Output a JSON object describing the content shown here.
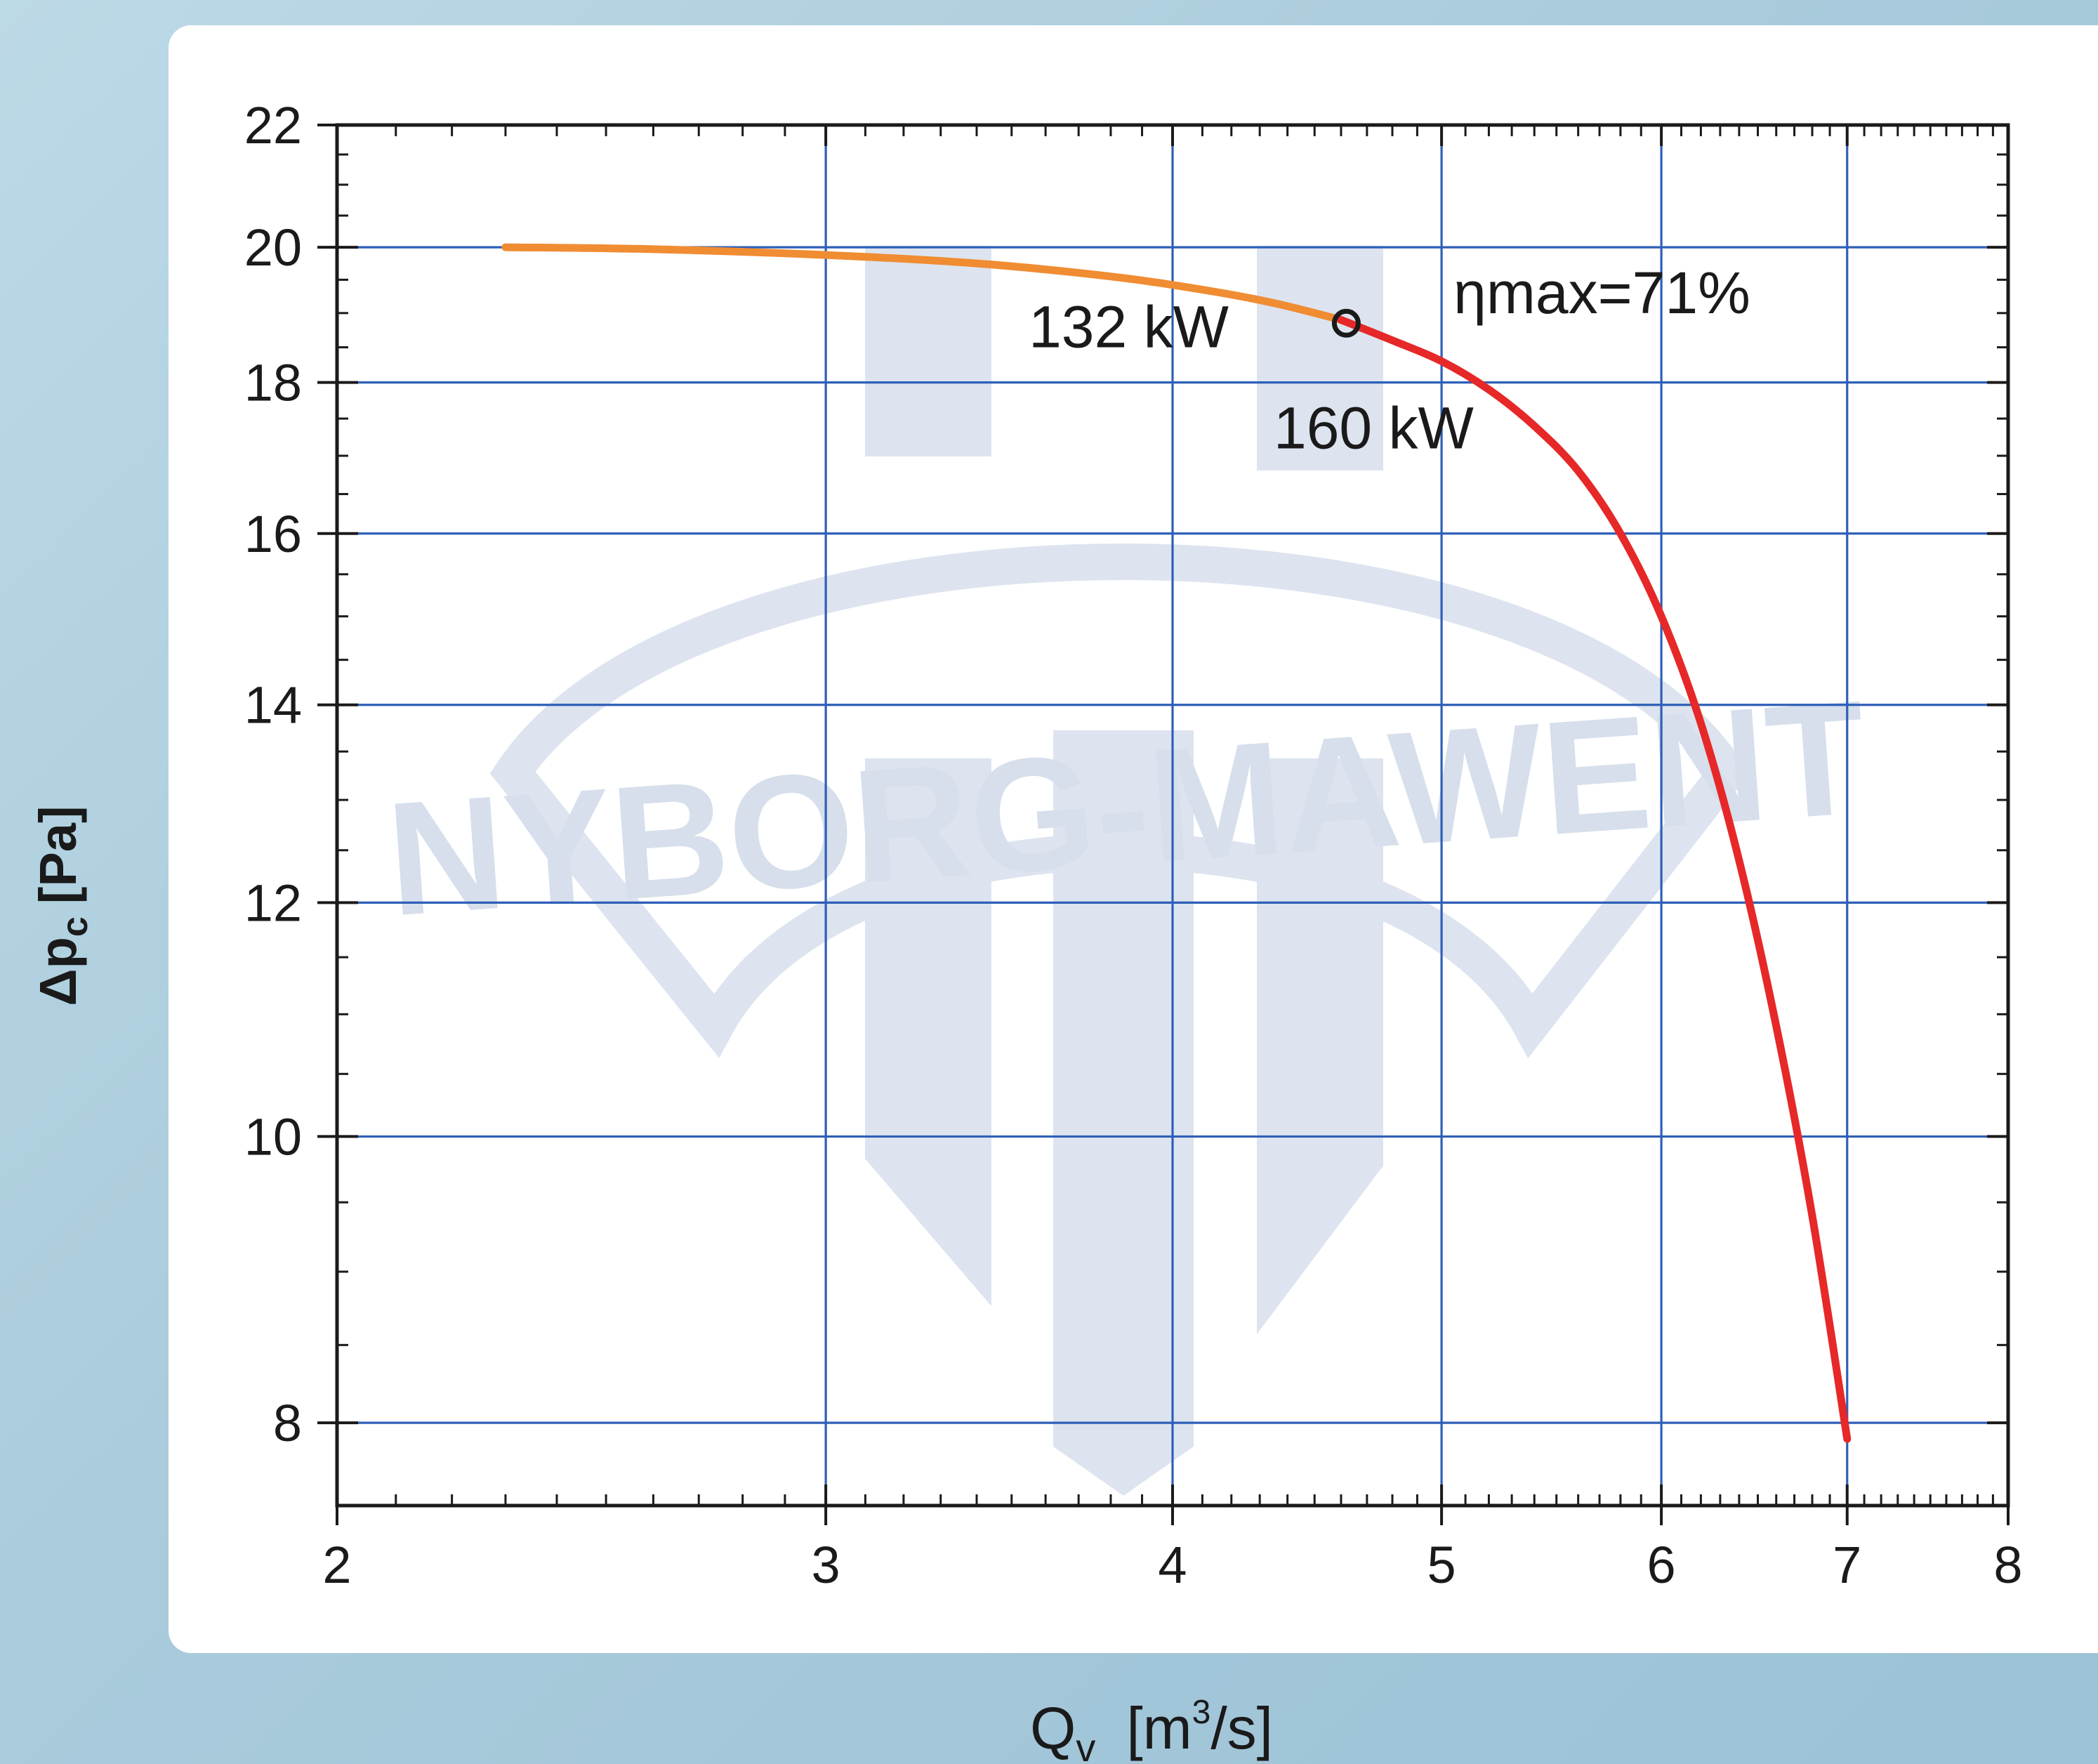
{
  "chart_data": {
    "type": "line",
    "x_scale": "log",
    "y_scale": "log",
    "xlim": [
      2,
      8
    ],
    "ylim": [
      7.5,
      22
    ],
    "x_ticks": [
      2,
      3,
      4,
      5,
      6,
      7,
      8
    ],
    "y_ticks": [
      8,
      10,
      12,
      14,
      16,
      18,
      20,
      22
    ],
    "grid": true,
    "xlabel": {
      "main": "Q",
      "sub": "v",
      "unit_pre": "[m",
      "unit_sup": "3",
      "unit_post": "/s]"
    },
    "ylabel": {
      "main": "Δp",
      "sub": "c",
      "unit": "[Pa]"
    },
    "series": [
      {
        "color": "#f08c32",
        "x": [
          2.3,
          2.6,
          3.0,
          3.4,
          3.8,
          4.1,
          4.35,
          4.6
        ],
        "y": [
          20.0,
          19.97,
          19.88,
          19.75,
          19.55,
          19.35,
          19.15,
          18.9
        ]
      },
      {
        "color": "#e62828",
        "x": [
          4.6,
          4.8,
          5.0,
          5.2,
          5.4,
          5.6,
          5.8,
          6.0,
          6.2,
          6.4,
          6.6,
          6.8,
          7.0
        ],
        "y": [
          18.9,
          18.6,
          18.3,
          17.9,
          17.4,
          16.8,
          16.0,
          15.0,
          13.8,
          12.4,
          10.9,
          9.4,
          7.9
        ]
      }
    ],
    "marker": {
      "x": 4.62,
      "y": 18.85
    },
    "annotations": [
      {
        "text": "132 kW",
        "x": 3.55,
        "y": 18.5
      },
      {
        "text": "160 kW",
        "x": 4.35,
        "y": 17.1
      },
      {
        "text": "ηmax=71%",
        "x": 5.05,
        "y": 19.0
      }
    ]
  },
  "watermark": {
    "text": "NYBORG-MAWENT",
    "color": "#dbe3ee"
  }
}
